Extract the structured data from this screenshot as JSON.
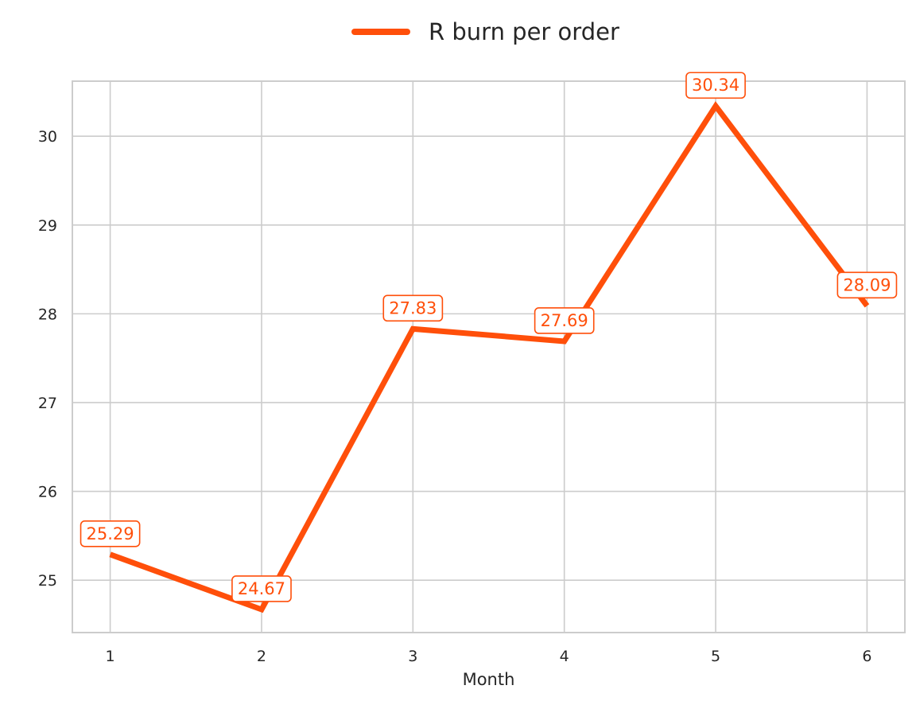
{
  "chart_data": {
    "type": "line",
    "x": [
      1,
      2,
      3,
      4,
      5,
      6
    ],
    "series": [
      {
        "name": "R burn per order",
        "values": [
          25.29,
          24.67,
          27.83,
          27.69,
          30.34,
          28.09
        ],
        "color": "#ff4f0a"
      }
    ],
    "data_labels": [
      "25.29",
      "24.67",
      "27.83",
      "27.69",
      "30.34",
      "28.09"
    ],
    "x_ticks": [
      "1",
      "2",
      "3",
      "4",
      "5",
      "6"
    ],
    "y_ticks": [
      "25",
      "26",
      "27",
      "28",
      "29",
      "30"
    ],
    "xlabel": "Month",
    "ylabel": "",
    "title": "",
    "xlim": [
      0.75,
      6.25
    ],
    "ylim": [
      24.41,
      30.62
    ],
    "grid": true,
    "legend_position": "top-center",
    "colors": {
      "grid": "#cccccc",
      "spine": "#cccccc",
      "text": "#262626",
      "background": "#ffffff"
    }
  }
}
